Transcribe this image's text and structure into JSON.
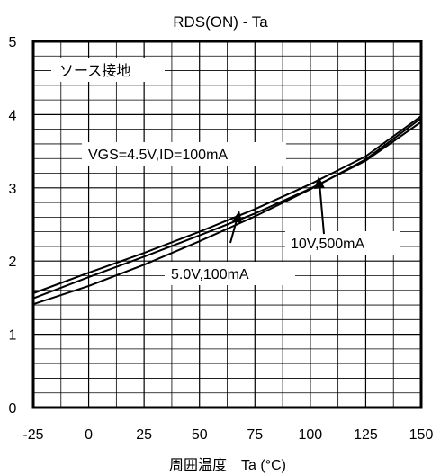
{
  "chart_data": {
    "type": "line",
    "title": "RDS(ON) - Ta",
    "xlabel": "周囲温度　Ta (°C)",
    "ylabel": "",
    "xlim": [
      -25,
      150
    ],
    "ylim": [
      0,
      5
    ],
    "x_ticks": [
      "-25",
      "0",
      "25",
      "50",
      "75",
      "100",
      "125",
      "150"
    ],
    "y_ticks": [
      "0",
      "1",
      "2",
      "3",
      "4",
      "5"
    ],
    "grid": true,
    "series": [
      {
        "x": [
          -25,
          0,
          25,
          50,
          75,
          100,
          125,
          150
        ],
        "values": [
          1.56,
          1.84,
          2.11,
          2.4,
          2.71,
          3.05,
          3.43,
          3.98
        ]
      },
      {
        "x": [
          -25,
          0,
          25,
          50,
          75,
          100,
          125,
          150
        ],
        "values": [
          1.49,
          1.78,
          2.06,
          2.35,
          2.65,
          2.99,
          3.37,
          3.9
        ]
      },
      {
        "x": [
          -25,
          0,
          25,
          50,
          75,
          100,
          125,
          150
        ],
        "values": [
          1.41,
          1.66,
          1.95,
          2.27,
          2.61,
          2.98,
          3.39,
          3.95
        ]
      }
    ],
    "annotations": {
      "condition1": "ソース接地",
      "condition2": "VGS=4.5V,ID=100mA",
      "label_10v": "10V,500mA",
      "label_5v": "5.0V,100mA"
    }
  }
}
